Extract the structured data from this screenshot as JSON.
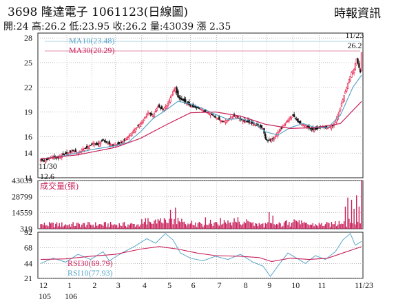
{
  "header": {
    "title": "3698  隆達電子 1061123(日線圖)",
    "source": "時報資訊",
    "stats": "開:24 高:26.2 低:23.95 收:26.2 量:43039 漲 2.35"
  },
  "colors": {
    "up": "#e8244f",
    "down": "#111111",
    "ma10": "#5aa6c8",
    "ma30": "#c8205a",
    "volume": "#c8205a",
    "rsi30": "#c8205a",
    "rsi10": "#5aa6c8",
    "grid": "#999999"
  },
  "chart_data": [
    {
      "type": "candlestick",
      "panel": "price",
      "y_ticks": [
        11,
        14,
        16,
        19,
        22,
        25,
        28
      ],
      "ylim": [
        11,
        28.6
      ],
      "legend": [
        {
          "label": "MA10(23.48)",
          "series": "ma10"
        },
        {
          "label": "MA30(20.29)",
          "series": "ma30"
        }
      ],
      "annotations": {
        "low_date": "11/30",
        "low_value": "12.6",
        "high_date": "11/23",
        "high_value": "26.2"
      },
      "close_path": [
        [
          0,
          13.2
        ],
        [
          3,
          13.0
        ],
        [
          6,
          13.3
        ],
        [
          10,
          13.6
        ],
        [
          14,
          13.4
        ],
        [
          18,
          13.8
        ],
        [
          22,
          14.0
        ],
        [
          26,
          14.3
        ],
        [
          30,
          14.0
        ],
        [
          34,
          14.5
        ],
        [
          38,
          14.7
        ],
        [
          42,
          15.2
        ],
        [
          46,
          15.0
        ],
        [
          50,
          15.6
        ],
        [
          54,
          15.2
        ],
        [
          58,
          14.9
        ],
        [
          62,
          15.1
        ],
        [
          66,
          15.4
        ],
        [
          70,
          16.0
        ],
        [
          74,
          16.6
        ],
        [
          78,
          17.3
        ],
        [
          82,
          17.9
        ],
        [
          86,
          19.0
        ],
        [
          90,
          18.5
        ],
        [
          94,
          19.7
        ],
        [
          98,
          19.3
        ],
        [
          102,
          20.0
        ],
        [
          106,
          21.5
        ],
        [
          108,
          21.9
        ],
        [
          110,
          20.8
        ],
        [
          114,
          20.4
        ],
        [
          118,
          20.0
        ],
        [
          122,
          19.6
        ],
        [
          126,
          19.5
        ],
        [
          130,
          19.2
        ],
        [
          134,
          18.9
        ],
        [
          138,
          18.6
        ],
        [
          142,
          18.2
        ],
        [
          146,
          17.8
        ],
        [
          150,
          18.0
        ],
        [
          154,
          18.5
        ],
        [
          158,
          18.4
        ],
        [
          162,
          17.9
        ],
        [
          166,
          17.8
        ],
        [
          170,
          17.6
        ],
        [
          174,
          17.3
        ],
        [
          178,
          17.0
        ],
        [
          180,
          15.8
        ],
        [
          182,
          15.5
        ],
        [
          186,
          15.7
        ],
        [
          190,
          16.5
        ],
        [
          194,
          17.2
        ],
        [
          198,
          18.0
        ],
        [
          202,
          18.6
        ],
        [
          206,
          17.8
        ],
        [
          210,
          17.5
        ],
        [
          214,
          17.2
        ],
        [
          218,
          16.8
        ],
        [
          222,
          17.0
        ],
        [
          226,
          17.2
        ],
        [
          230,
          17.1
        ],
        [
          234,
          17.3
        ],
        [
          238,
          18.5
        ],
        [
          242,
          20.5
        ],
        [
          246,
          22.5
        ],
        [
          249,
          23.8
        ],
        [
          251,
          24.2
        ],
        [
          253,
          25.5
        ],
        [
          256,
          23.85
        ],
        [
          257,
          26.2
        ]
      ],
      "ma10": [
        [
          0,
          13.3
        ],
        [
          20,
          13.7
        ],
        [
          40,
          14.4
        ],
        [
          60,
          14.9
        ],
        [
          70,
          15.3
        ],
        [
          80,
          16.6
        ],
        [
          90,
          18.2
        ],
        [
          100,
          19.2
        ],
        [
          110,
          20.3
        ],
        [
          120,
          20.0
        ],
        [
          130,
          19.4
        ],
        [
          140,
          18.7
        ],
        [
          150,
          18.1
        ],
        [
          160,
          18.2
        ],
        [
          170,
          17.8
        ],
        [
          180,
          16.6
        ],
        [
          190,
          16.2
        ],
        [
          200,
          17.1
        ],
        [
          210,
          17.6
        ],
        [
          220,
          17.1
        ],
        [
          230,
          17.1
        ],
        [
          240,
          18.6
        ],
        [
          250,
          22.0
        ],
        [
          257,
          23.48
        ]
      ],
      "ma30": [
        [
          0,
          13.3
        ],
        [
          30,
          13.8
        ],
        [
          60,
          14.7
        ],
        [
          80,
          15.8
        ],
        [
          100,
          17.4
        ],
        [
          120,
          18.9
        ],
        [
          140,
          19.0
        ],
        [
          160,
          18.5
        ],
        [
          180,
          17.5
        ],
        [
          200,
          17.0
        ],
        [
          220,
          17.1
        ],
        [
          240,
          17.6
        ],
        [
          257,
          20.29
        ]
      ]
    },
    {
      "type": "bar",
      "panel": "volume",
      "title": "成交量(張)",
      "y_ticks": [
        43039,
        28799,
        14559,
        319
      ],
      "ylim": [
        319,
        43039
      ],
      "spikes": [
        [
          104,
          17000
        ],
        [
          108,
          19000
        ],
        [
          110,
          10000
        ],
        [
          183,
          15000
        ],
        [
          186,
          12000
        ],
        [
          244,
          20000
        ],
        [
          246,
          28000
        ],
        [
          249,
          26000
        ],
        [
          251,
          18000
        ],
        [
          253,
          30000
        ],
        [
          255,
          20000
        ],
        [
          257,
          43039
        ]
      ]
    },
    {
      "type": "line",
      "panel": "rsi",
      "y_ticks": [
        92,
        68,
        44,
        21
      ],
      "ylim": [
        21,
        92
      ],
      "legend": [
        {
          "label": "RSI30(69.79)",
          "series": "rsi30"
        },
        {
          "label": "RSI10(77.93)",
          "series": "rsi10"
        }
      ],
      "rsi30": [
        [
          0,
          50
        ],
        [
          20,
          51
        ],
        [
          40,
          55
        ],
        [
          60,
          58
        ],
        [
          80,
          66
        ],
        [
          95,
          70
        ],
        [
          110,
          66
        ],
        [
          125,
          60
        ],
        [
          140,
          56
        ],
        [
          160,
          55
        ],
        [
          175,
          53
        ],
        [
          185,
          47
        ],
        [
          200,
          52
        ],
        [
          215,
          50
        ],
        [
          230,
          52
        ],
        [
          245,
          62
        ],
        [
          257,
          69.79
        ]
      ],
      "rsi10": [
        [
          0,
          44
        ],
        [
          10,
          52
        ],
        [
          20,
          46
        ],
        [
          30,
          58
        ],
        [
          40,
          50
        ],
        [
          50,
          62
        ],
        [
          55,
          48
        ],
        [
          65,
          60
        ],
        [
          75,
          70
        ],
        [
          85,
          82
        ],
        [
          92,
          75
        ],
        [
          100,
          90
        ],
        [
          106,
          80
        ],
        [
          112,
          60
        ],
        [
          120,
          52
        ],
        [
          130,
          48
        ],
        [
          140,
          55
        ],
        [
          150,
          50
        ],
        [
          160,
          58
        ],
        [
          170,
          46
        ],
        [
          178,
          40
        ],
        [
          184,
          24
        ],
        [
          190,
          40
        ],
        [
          198,
          60
        ],
        [
          205,
          52
        ],
        [
          212,
          44
        ],
        [
          220,
          56
        ],
        [
          228,
          50
        ],
        [
          236,
          62
        ],
        [
          242,
          80
        ],
        [
          248,
          90
        ],
        [
          252,
          72
        ],
        [
          257,
          77.93
        ]
      ]
    },
    {
      "type": "axis",
      "panel": "x",
      "month_labels": [
        "12",
        "1",
        "2",
        "3",
        "4",
        "5",
        "6",
        "7",
        "8",
        "9",
        "10",
        "11",
        "11/23"
      ],
      "month_positions": [
        0,
        21,
        41,
        60,
        81,
        101,
        120,
        141,
        162,
        181,
        202,
        223,
        257
      ],
      "year_labels": [
        "105",
        "106"
      ],
      "year_positions": [
        0,
        21
      ]
    }
  ]
}
